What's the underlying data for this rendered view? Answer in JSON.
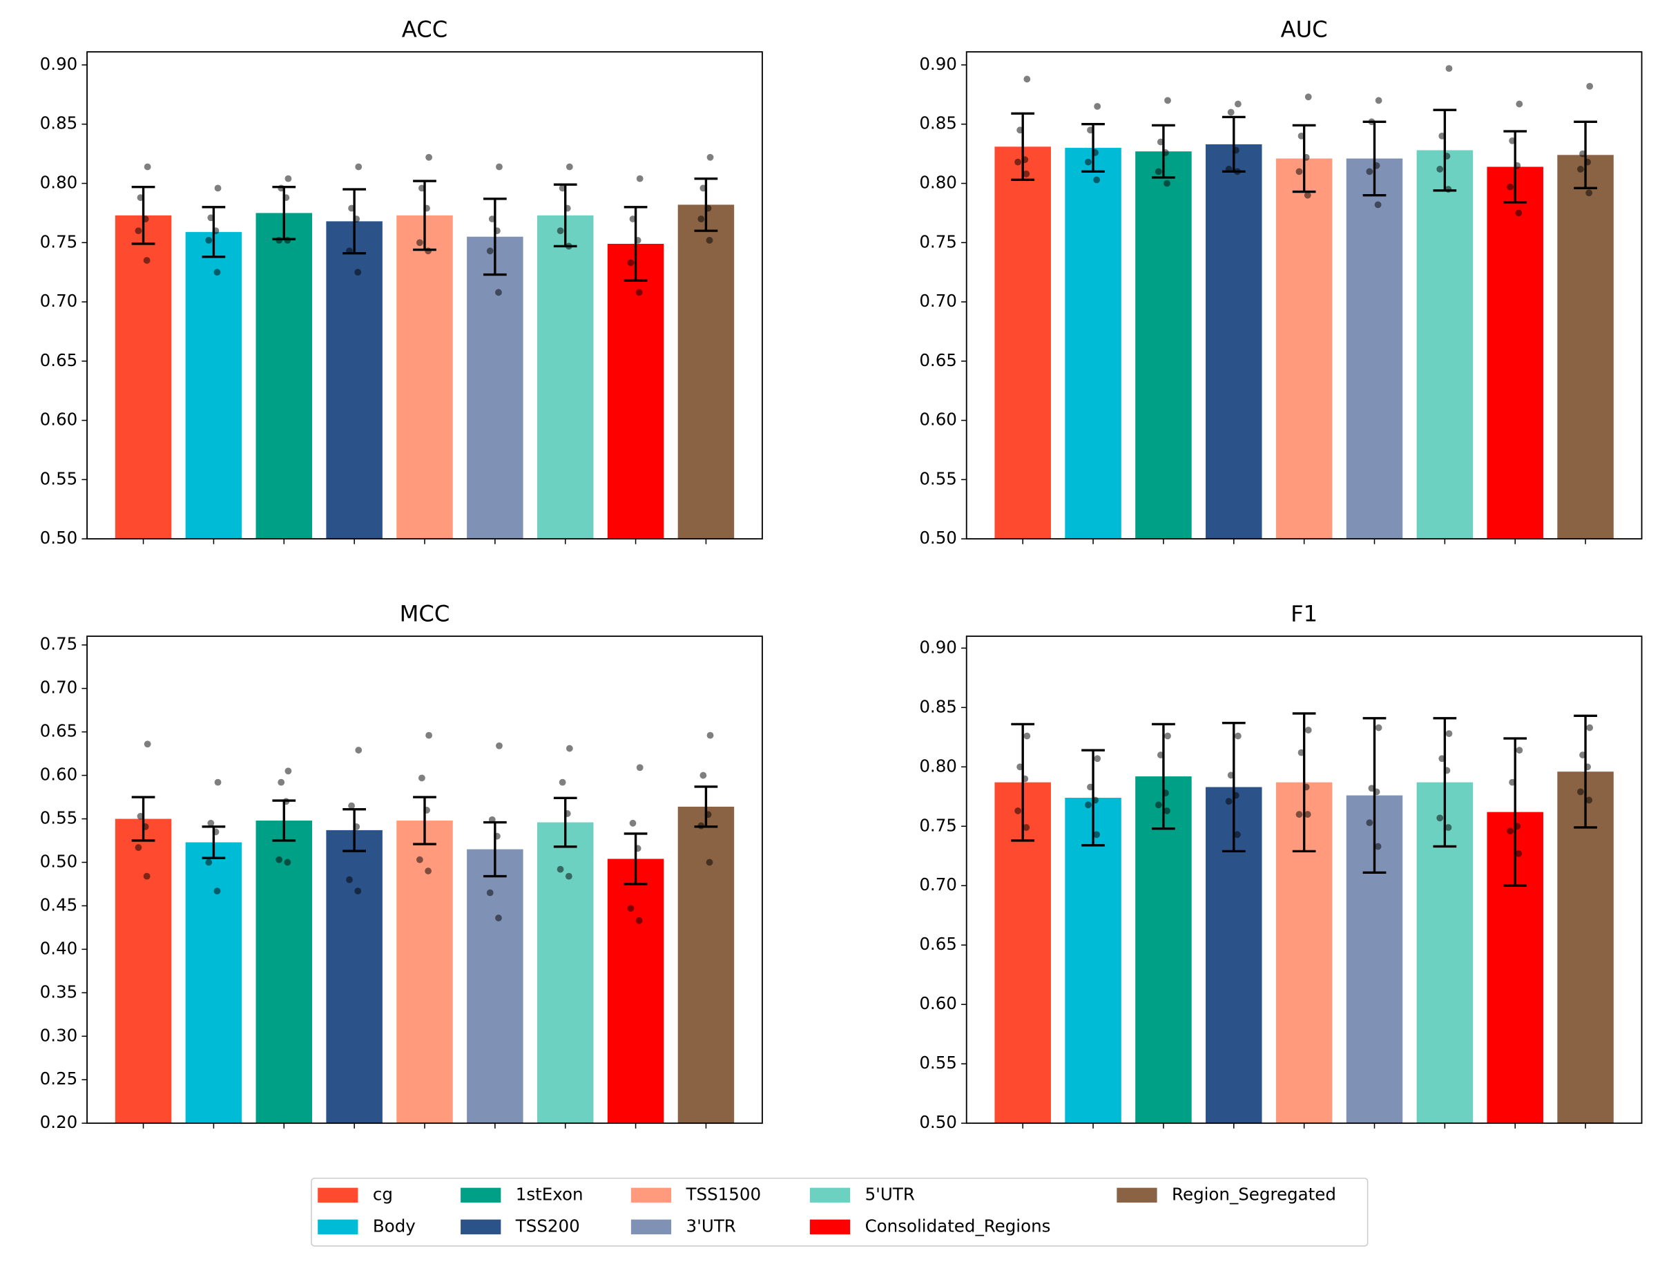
{
  "chart_data": {
    "type": "bar",
    "categories": [
      "cg",
      "Body",
      "1stExon",
      "TSS200",
      "TSS1500",
      "3'UTR",
      "5'UTR",
      "Consolidated_Regions",
      "Region_Segregated"
    ],
    "colors": [
      "#FE4A2F",
      "#00BBD6",
      "#00A087",
      "#2B5289",
      "#FF9A7C",
      "#8091B6",
      "#6DD1C2",
      "#FF0000",
      "#8A6244"
    ],
    "legend": {
      "placement": "bottom-center",
      "ncol": 5,
      "order": [
        "cg",
        "Body",
        "1stExon",
        "TSS200",
        "TSS1500",
        "3'UTR",
        "5'UTR",
        "Consolidated_Regions",
        "Region_Segregated"
      ]
    },
    "subplots": [
      {
        "title": "ACC",
        "ylim": [
          0.5,
          0.911
        ],
        "yticks": [
          "0.50",
          "0.55",
          "0.60",
          "0.65",
          "0.70",
          "0.75",
          "0.80",
          "0.85",
          "0.90"
        ],
        "values": [
          0.773,
          0.759,
          0.775,
          0.768,
          0.773,
          0.755,
          0.773,
          0.749,
          0.782
        ],
        "errors": [
          0.024,
          0.021,
          0.022,
          0.027,
          0.029,
          0.032,
          0.026,
          0.031,
          0.022
        ],
        "points": [
          [
            0.814,
            0.788,
            0.77,
            0.76,
            0.735
          ],
          [
            0.796,
            0.771,
            0.76,
            0.752,
            0.725
          ],
          [
            0.804,
            0.796,
            0.788,
            0.752,
            0.752
          ],
          [
            0.814,
            0.779,
            0.77,
            0.743,
            0.725
          ],
          [
            0.822,
            0.796,
            0.779,
            0.75,
            0.743
          ],
          [
            0.814,
            0.77,
            0.76,
            0.743,
            0.708
          ],
          [
            0.814,
            0.796,
            0.779,
            0.76,
            0.747
          ],
          [
            0.804,
            0.77,
            0.752,
            0.733,
            0.708
          ],
          [
            0.822,
            0.796,
            0.779,
            0.77,
            0.752
          ]
        ]
      },
      {
        "title": "AUC",
        "ylim": [
          0.5,
          0.911
        ],
        "yticks": [
          "0.50",
          "0.55",
          "0.60",
          "0.65",
          "0.70",
          "0.75",
          "0.80",
          "0.85",
          "0.90"
        ],
        "values": [
          0.831,
          0.83,
          0.827,
          0.833,
          0.821,
          0.821,
          0.828,
          0.814,
          0.824
        ],
        "errors": [
          0.028,
          0.02,
          0.022,
          0.023,
          0.028,
          0.031,
          0.034,
          0.03,
          0.028
        ],
        "points": [
          [
            0.888,
            0.845,
            0.82,
            0.818,
            0.808
          ],
          [
            0.865,
            0.845,
            0.826,
            0.818,
            0.803
          ],
          [
            0.87,
            0.835,
            0.826,
            0.81,
            0.8
          ],
          [
            0.867,
            0.86,
            0.828,
            0.812,
            0.81
          ],
          [
            0.873,
            0.84,
            0.822,
            0.81,
            0.79
          ],
          [
            0.87,
            0.852,
            0.815,
            0.81,
            0.782
          ],
          [
            0.897,
            0.84,
            0.823,
            0.812,
            0.795
          ],
          [
            0.867,
            0.836,
            0.815,
            0.797,
            0.775
          ],
          [
            0.882,
            0.825,
            0.818,
            0.812,
            0.792
          ]
        ]
      },
      {
        "title": "MCC",
        "ylim": [
          0.2,
          0.76
        ],
        "yticks": [
          "0.20",
          "0.25",
          "0.30",
          "0.35",
          "0.40",
          "0.45",
          "0.50",
          "0.55",
          "0.60",
          "0.65",
          "0.70",
          "0.75"
        ],
        "values": [
          0.55,
          0.523,
          0.548,
          0.537,
          0.548,
          0.515,
          0.546,
          0.504,
          0.564
        ],
        "errors": [
          0.025,
          0.018,
          0.023,
          0.024,
          0.027,
          0.031,
          0.028,
          0.029,
          0.023
        ],
        "points": [
          [
            0.636,
            0.553,
            0.541,
            0.517,
            0.484
          ],
          [
            0.592,
            0.545,
            0.535,
            0.5,
            0.467
          ],
          [
            0.605,
            0.592,
            0.57,
            0.503,
            0.5
          ],
          [
            0.629,
            0.565,
            0.541,
            0.48,
            0.467
          ],
          [
            0.646,
            0.597,
            0.56,
            0.503,
            0.49
          ],
          [
            0.634,
            0.549,
            0.53,
            0.465,
            0.436
          ],
          [
            0.631,
            0.592,
            0.556,
            0.492,
            0.484
          ],
          [
            0.609,
            0.545,
            0.516,
            0.447,
            0.433
          ],
          [
            0.646,
            0.6,
            0.555,
            0.542,
            0.5
          ]
        ]
      },
      {
        "title": "F1",
        "ylim": [
          0.5,
          0.91
        ],
        "yticks": [
          "0.50",
          "0.55",
          "0.60",
          "0.65",
          "0.70",
          "0.75",
          "0.80",
          "0.85",
          "0.90"
        ],
        "values": [
          0.787,
          0.774,
          0.792,
          0.783,
          0.787,
          0.776,
          0.787,
          0.762,
          0.796
        ],
        "errors": [
          0.049,
          0.04,
          0.044,
          0.054,
          0.058,
          0.065,
          0.054,
          0.062,
          0.047
        ],
        "points": [
          [
            0.826,
            0.8,
            0.79,
            0.763,
            0.749
          ],
          [
            0.807,
            0.783,
            0.772,
            0.768,
            0.743
          ],
          [
            0.826,
            0.81,
            0.778,
            0.768,
            0.763
          ],
          [
            0.826,
            0.793,
            0.776,
            0.771,
            0.743
          ],
          [
            0.831,
            0.812,
            0.783,
            0.76,
            0.76
          ],
          [
            0.833,
            0.782,
            0.779,
            0.753,
            0.733
          ],
          [
            0.828,
            0.807,
            0.797,
            0.757,
            0.749
          ],
          [
            0.814,
            0.787,
            0.75,
            0.746,
            0.727
          ],
          [
            0.833,
            0.81,
            0.8,
            0.779,
            0.772
          ]
        ]
      }
    ]
  }
}
